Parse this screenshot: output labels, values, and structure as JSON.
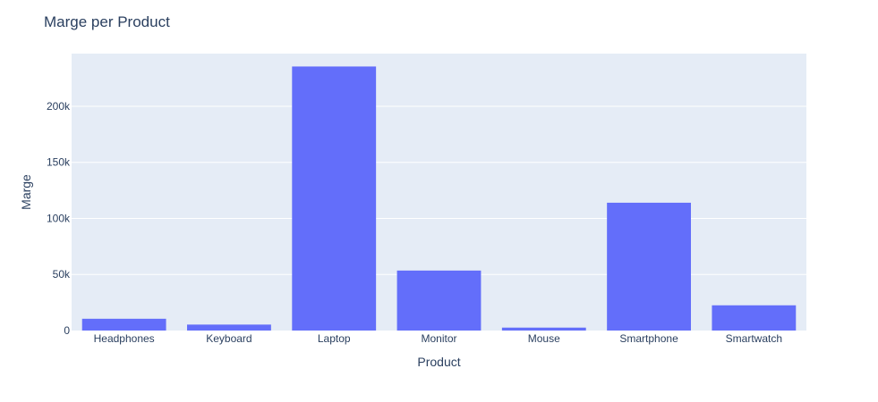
{
  "chart_data": {
    "type": "bar",
    "title": "Marge per Product",
    "xlabel": "Product",
    "ylabel": "Marge",
    "categories": [
      "Headphones",
      "Keyboard",
      "Laptop",
      "Monitor",
      "Mouse",
      "Smartphone",
      "Smartwatch"
    ],
    "values": [
      10500,
      5300,
      235500,
      53500,
      2600,
      114000,
      22500
    ],
    "ylim": [
      0,
      247000
    ],
    "yticks": [
      0,
      50000,
      100000,
      150000,
      200000
    ],
    "ytick_labels": [
      "0",
      "50k",
      "100k",
      "150k",
      "200k"
    ],
    "grid": true,
    "legend": "none",
    "colors": {
      "bar": "#636efa",
      "plot_bg": "#e5ecf6",
      "text": "#2a3f5f",
      "grid": "#ffffff"
    }
  }
}
